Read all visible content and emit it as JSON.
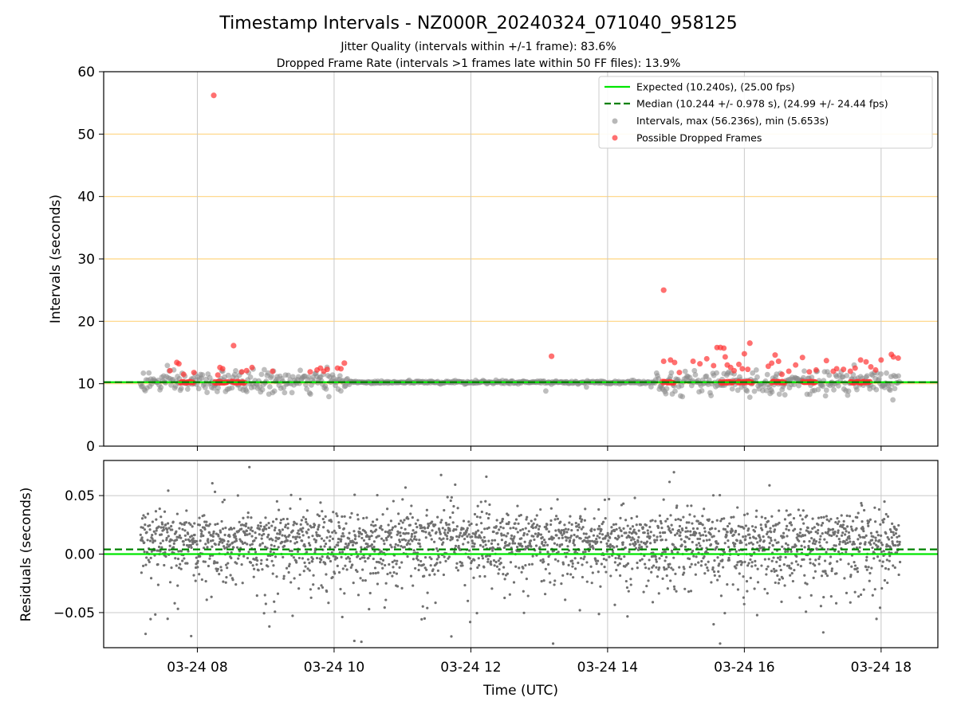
{
  "chart_data": {
    "title": "Timestamp Intervals - NZ000R_20240324_071040_958125",
    "subtitle_1": "Jitter Quality (intervals within +/-1 frame): 83.6%",
    "subtitle_2": "Dropped Frame Rate (intervals >1 frames late within 50 FF files): 13.9%",
    "xlabel": "Time (UTC)",
    "x_tick_labels": [
      "03-24 08",
      "03-24 10",
      "03-24 12",
      "03-24 14",
      "03-24 16",
      "03-24 18"
    ],
    "x_tick_hours": [
      8,
      10,
      12,
      14,
      16,
      18
    ],
    "xlim_hours": [
      6.63,
      18.83
    ],
    "data_range_hours": [
      7.17,
      18.28
    ],
    "top_panel": {
      "type": "scatter",
      "ylabel": "Intervals (seconds)",
      "ylim": [
        0,
        60
      ],
      "y_ticks": [
        0,
        10,
        20,
        30,
        40,
        50,
        60
      ],
      "y_tick_labels": [
        "0",
        "10",
        "20",
        "30",
        "40",
        "50",
        "60"
      ],
      "horizontal_guides": [
        10,
        20,
        30,
        40,
        50
      ],
      "guide_color": "#ffd580",
      "expected_interval": 10.24,
      "median_interval": 10.244,
      "max_interval": 56.236,
      "min_interval": 5.653,
      "legend": {
        "position": "top-right",
        "entries": [
          {
            "label": "Expected (10.240s), (25.00 fps)",
            "color": "#00e600",
            "style": "solid-line"
          },
          {
            "label": "Median (10.244 +/- 0.978 s), (24.99 +/- 24.44 fps)",
            "color": "#008000",
            "style": "dashed-line"
          },
          {
            "label": "Intervals, max (56.236s), min (5.653s)",
            "color": "#888888",
            "style": "marker"
          },
          {
            "label": "Possible Dropped Frames",
            "color": "#ff3333",
            "style": "marker"
          }
        ]
      },
      "dropped_frames_notable": [
        {
          "x": 8.24,
          "y": 56.2
        },
        {
          "x": 14.82,
          "y": 25.0
        },
        {
          "x": 8.53,
          "y": 16.1
        },
        {
          "x": 16.08,
          "y": 16.5
        },
        {
          "x": 15.65,
          "y": 15.8
        },
        {
          "x": 13.18,
          "y": 14.4
        },
        {
          "x": 7.7,
          "y": 13.4
        },
        {
          "x": 10.15,
          "y": 13.3
        }
      ]
    },
    "bottom_panel": {
      "type": "scatter",
      "ylabel": "Residuals (seconds)",
      "ylim": [
        -0.08,
        0.08
      ],
      "y_ticks": [
        0.05,
        0.0,
        -0.05
      ],
      "y_tick_labels": [
        "0.05",
        "0.00",
        "−0.05"
      ],
      "expected_line": 0.0,
      "median_line": 0.004
    },
    "colors": {
      "expected": "#00e600",
      "median": "#008000",
      "intervals": "#888888",
      "dropped": "#ff3333",
      "residual_points": "#707070",
      "grid": "#c8c8c8"
    }
  }
}
